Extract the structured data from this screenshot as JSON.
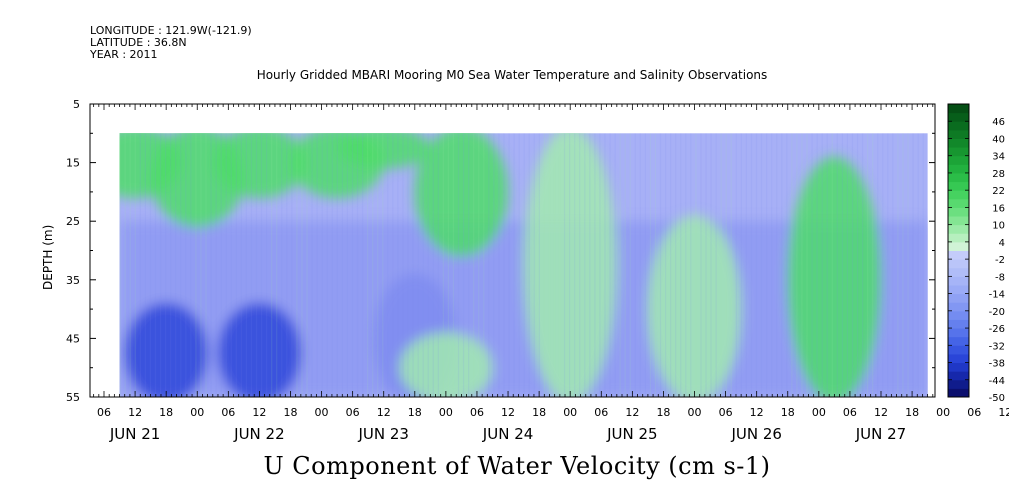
{
  "header": {
    "longitude": "LONGITUDE : 121.9W(-121.9)",
    "latitude": "LATITUDE : 36.8N",
    "year": "YEAR : 2011"
  },
  "chart_data": {
    "type": "heatmap",
    "title": "Hourly Gridded MBARI Mooring M0 Sea Water Temperature and Salinity Observations",
    "subtitle": "U Component of Water Velocity (cm s-1)",
    "ylabel": "DEPTH (m)",
    "xlabel": "",
    "y_ticks": [
      5,
      15,
      25,
      35,
      45,
      55
    ],
    "ylim": [
      55,
      5
    ],
    "data_depth_range": [
      10,
      55
    ],
    "x_range_hours": [
      "JUN 21 00",
      "JUN 28 00"
    ],
    "data_time_range": [
      "JUN 21 09",
      "JUN 27 21"
    ],
    "x_hour_ticks": [
      "06",
      "12",
      "18",
      "00",
      "06",
      "12",
      "18",
      "00",
      "06",
      "12",
      "18",
      "00",
      "06",
      "12",
      "18",
      "00",
      "06",
      "12",
      "18",
      "00",
      "06",
      "12",
      "18",
      "00",
      "06",
      "12",
      "18",
      "00",
      "06",
      "12",
      "18"
    ],
    "x_day_labels": [
      "JUN 21",
      "JUN 22",
      "JUN 23",
      "JUN 24",
      "JUN 25",
      "JUN 26",
      "JUN 27"
    ],
    "colorbar_labels": [
      "46",
      "40",
      "34",
      "28",
      "22",
      "16",
      "10",
      "4",
      "-2",
      "-8",
      "-14",
      "-20",
      "-26",
      "-32",
      "-38",
      "-44",
      "-50"
    ],
    "colorbar_range": [
      -50,
      52
    ],
    "value_fields": [
      {
        "time": "JUN 21 12",
        "depth_top": 10,
        "depth_bottom": 20,
        "u": 8
      },
      {
        "time": "JUN 21 18",
        "depth_top": 40,
        "depth_bottom": 55,
        "u": -26
      },
      {
        "time": "JUN 22 00",
        "depth_top": 10,
        "depth_bottom": 25,
        "u": 8
      },
      {
        "time": "JUN 22 12",
        "depth_top": 10,
        "depth_bottom": 20,
        "u": 8
      },
      {
        "time": "JUN 22 12",
        "depth_top": 40,
        "depth_bottom": 55,
        "u": -26
      },
      {
        "time": "JUN 23 03",
        "depth_top": 10,
        "depth_bottom": 20,
        "u": 10
      },
      {
        "time": "JUN 23 12",
        "depth_top": 10,
        "depth_bottom": 15,
        "u": 8
      },
      {
        "time": "JUN 23 18",
        "depth_top": 35,
        "depth_bottom": 55,
        "u": -20
      },
      {
        "time": "JUN 24 03",
        "depth_top": 10,
        "depth_bottom": 30,
        "u": 8
      },
      {
        "time": "JUN 24 00",
        "depth_top": 45,
        "depth_bottom": 55,
        "u": 4
      },
      {
        "time": "JUN 25 00",
        "depth_top": 10,
        "depth_bottom": 55,
        "u": 4
      },
      {
        "time": "JUN 26 00",
        "depth_top": 25,
        "depth_bottom": 55,
        "u": 4
      },
      {
        "time": "JUN 27 03",
        "depth_top": 15,
        "depth_bottom": 55,
        "u": 8
      }
    ],
    "colors": {
      "negative_deep": "#2e45d8",
      "negative_mid": "#7f8cf0",
      "near_zero_neg": "#a7b0f6",
      "near_zero_pos": "#a2eab0",
      "positive_mid": "#4fdc6a",
      "positive_deep": "#1c7a2e"
    }
  }
}
